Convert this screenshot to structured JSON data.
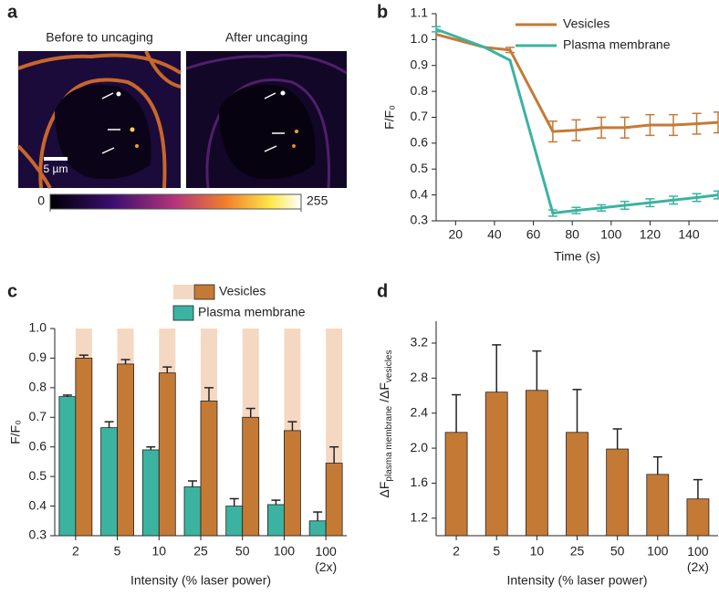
{
  "panel_labels": [
    "a",
    "b",
    "c",
    "d"
  ],
  "image_panel": {
    "titles": [
      "Before to uncaging",
      "After uncaging"
    ],
    "scale_bar": "5 µm",
    "colorbar_range": [
      0,
      255
    ]
  },
  "chart_data": [
    {
      "type": "line",
      "xlabel": "Time (s)",
      "ylabel": "F/F₀",
      "x": [
        10,
        35,
        48,
        70,
        82,
        95,
        107,
        120,
        132,
        144,
        155
      ],
      "xlim": [
        10,
        155
      ],
      "xticks": [
        20,
        40,
        60,
        80,
        100,
        120,
        140
      ],
      "ylim": [
        0.3,
        1.1
      ],
      "yticks": [
        0.3,
        0.4,
        0.5,
        0.6,
        0.7,
        0.8,
        0.9,
        {
          "value": 1,
          "label": "1.0"
        },
        1.1
      ],
      "legend": "upper right",
      "series": [
        {
          "name": "Vesicles",
          "color": "#c47a35",
          "values": [
            1.02,
            0.97,
            0.96,
            0.645,
            0.65,
            0.66,
            0.66,
            0.67,
            0.67,
            0.675,
            0.68
          ],
          "errors": [
            null,
            null,
            0.01,
            0.04,
            0.04,
            0.04,
            0.04,
            0.04,
            0.04,
            0.04,
            0.04
          ]
        },
        {
          "name": "Plasma membrane",
          "color": "#3bb3a0",
          "values": [
            1.04,
            0.97,
            0.92,
            0.33,
            0.34,
            0.35,
            0.36,
            0.37,
            0.38,
            0.39,
            0.4
          ],
          "errors": [
            0.01,
            null,
            null,
            0.012,
            0.012,
            0.012,
            0.015,
            0.015,
            0.015,
            0.015,
            0.015
          ]
        }
      ]
    },
    {
      "type": "grouped-bar",
      "xlabel": "Intensity (% laser power)",
      "ylabel": "F/F₀",
      "categories": [
        "2",
        "5",
        "10",
        "25",
        "50",
        "100",
        "100 (2x)"
      ],
      "ylim": [
        0.3,
        1.0
      ],
      "yticks": [
        0.3,
        0.4,
        0.5,
        0.6,
        0.7,
        0.8,
        0.9,
        {
          "value": 1,
          "label": "1.0"
        }
      ],
      "reference_value": 1,
      "reference_color": "#f5d8c2",
      "series": [
        {
          "name": "Plasma membrane",
          "color": "#3bb3a0",
          "values": [
            0.77,
            0.665,
            0.59,
            0.465,
            0.4,
            0.405,
            0.35
          ],
          "errors": [
            0.005,
            0.02,
            0.01,
            0.02,
            0.025,
            0.015,
            0.03
          ]
        },
        {
          "name": "Vesicles",
          "color": "#c47a35",
          "values": [
            0.9,
            0.88,
            0.85,
            0.755,
            0.7,
            0.655,
            0.545
          ],
          "errors": [
            0.01,
            0.015,
            0.02,
            0.045,
            0.03,
            0.03,
            0.055
          ]
        }
      ]
    },
    {
      "type": "bar",
      "xlabel": "Intensity (% laser power)",
      "ylabel_parts": [
        "ΔF",
        "plasma membrane",
        " /ΔF",
        "vesicles"
      ],
      "categories": [
        "2",
        "5",
        "10",
        "25",
        "50",
        "100",
        "100 (2x)"
      ],
      "values": [
        2.18,
        2.64,
        2.66,
        2.18,
        1.99,
        1.7,
        1.42
      ],
      "errors": [
        0.43,
        0.54,
        0.45,
        0.49,
        0.23,
        0.2,
        0.22
      ],
      "color": "#c47a35",
      "ylim": [
        1.0,
        3.45
      ],
      "yticks": [
        1.2,
        1.6,
        {
          "value": 2,
          "label": "2.0"
        },
        2.4,
        2.8,
        3.2
      ]
    }
  ]
}
